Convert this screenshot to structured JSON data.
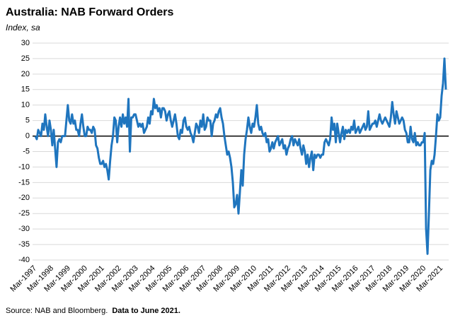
{
  "chart_data": {
    "type": "line",
    "title": "Australia: NAB Forward Orders",
    "subtitle": "Index, sa",
    "source": "Source: NAB and Bloomberg.",
    "note": "Data to June 2021.",
    "categories": [
      "Mar-1997",
      null,
      null,
      null,
      null,
      null,
      null,
      null,
      null,
      null,
      null,
      null,
      "Mar-1998",
      null,
      null,
      null,
      null,
      null,
      null,
      null,
      null,
      null,
      null,
      null,
      "Mar-1999",
      null,
      null,
      null,
      null,
      null,
      null,
      null,
      null,
      null,
      null,
      null,
      "Mar-2000",
      null,
      null,
      null,
      null,
      null,
      null,
      null,
      null,
      null,
      null,
      null,
      "Mar-2001",
      null,
      null,
      null,
      null,
      null,
      null,
      null,
      null,
      null,
      null,
      null,
      "Mar-2002",
      null,
      null,
      null,
      null,
      null,
      null,
      null,
      null,
      null,
      null,
      null,
      "Mar-2003",
      null,
      null,
      null,
      null,
      null,
      null,
      null,
      null,
      null,
      null,
      null,
      "Mar-2004",
      null,
      null,
      null,
      null,
      null,
      null,
      null,
      null,
      null,
      null,
      null,
      "Mar-2005",
      null,
      null,
      null,
      null,
      null,
      null,
      null,
      null,
      null,
      null,
      null,
      "Mar-2006",
      null,
      null,
      null,
      null,
      null,
      null,
      null,
      null,
      null,
      null,
      null,
      "Mar-2007",
      null,
      null,
      null,
      null,
      null,
      null,
      null,
      null,
      null,
      null,
      null,
      "Mar-2008",
      null,
      null,
      null,
      null,
      null,
      null,
      null,
      null,
      null,
      null,
      null,
      "Mar-2009",
      null,
      null,
      null,
      null,
      null,
      null,
      null,
      null,
      null,
      null,
      null,
      "Mar-2010",
      null,
      null,
      null,
      null,
      null,
      null,
      null,
      null,
      null,
      null,
      null,
      "Mar-2011",
      null,
      null,
      null,
      null,
      null,
      null,
      null,
      null,
      null,
      null,
      null,
      "Mar-2012",
      null,
      null,
      null,
      null,
      null,
      null,
      null,
      null,
      null,
      null,
      null,
      "Mar-2013",
      null,
      null,
      null,
      null,
      null,
      null,
      null,
      null,
      null,
      null,
      null,
      "Mar-2014",
      null,
      null,
      null,
      null,
      null,
      null,
      null,
      null,
      null,
      null,
      null,
      "Mar-2015",
      null,
      null,
      null,
      null,
      null,
      null,
      null,
      null,
      null,
      null,
      null,
      "Mar-2016",
      null,
      null,
      null,
      null,
      null,
      null,
      null,
      null,
      null,
      null,
      null,
      "Mar-2017",
      null,
      null,
      null,
      null,
      null,
      null,
      null,
      null,
      null,
      null,
      null,
      "Mar-2018",
      null,
      null,
      null,
      null,
      null,
      null,
      null,
      null,
      null,
      null,
      null,
      "Mar-2019",
      null,
      null,
      null,
      null,
      null,
      null,
      null,
      null,
      null,
      null,
      null,
      "Mar-2020",
      null,
      null,
      null,
      null,
      null,
      null,
      null,
      null,
      null,
      null,
      null,
      "Mar-2021",
      null,
      null,
      null
    ],
    "series": [
      {
        "color": "#1f75be",
        "values": [
          0,
          -1,
          2,
          1,
          0,
          4,
          2,
          7,
          3,
          0,
          5,
          2,
          -3,
          2,
          -4,
          -10,
          -2,
          -1,
          -2,
          0,
          0,
          0,
          5,
          10,
          5,
          4,
          7,
          4,
          5,
          2,
          2,
          0,
          4,
          7,
          3,
          0,
          0,
          3,
          2,
          2,
          1,
          3,
          2,
          -3,
          -4,
          -7,
          -9,
          -9,
          -8,
          -10,
          -9,
          -11,
          -14,
          -8,
          -3,
          0,
          6,
          5,
          -2,
          3,
          6,
          3,
          7,
          4,
          6,
          3,
          12,
          -5,
          6,
          6,
          7,
          7,
          5,
          3,
          4,
          3,
          4,
          1,
          2,
          3,
          6,
          4,
          8,
          7,
          12,
          9,
          10,
          8,
          9,
          6,
          9,
          9,
          8,
          5,
          7,
          8,
          5,
          3,
          5,
          7,
          4,
          0,
          -1,
          2,
          1,
          5,
          6,
          3,
          2,
          3,
          1,
          0,
          -2,
          1,
          4,
          3,
          1,
          5,
          3,
          7,
          2,
          3,
          6,
          5,
          5,
          0,
          4,
          5,
          7,
          6,
          8,
          9,
          6,
          4,
          0,
          -3,
          -6,
          -5,
          -7,
          -10,
          -15,
          -23,
          -22,
          -19,
          -25,
          -18,
          -11,
          -16,
          -6,
          -1,
          2,
          6,
          3,
          1,
          4,
          3,
          6,
          10,
          4,
          2,
          3,
          1,
          0,
          1,
          -2,
          -1,
          -5,
          -4,
          -2,
          -4,
          -2,
          -1,
          0,
          -3,
          -2,
          -1,
          -4,
          -3,
          -6,
          -4,
          -3,
          -1,
          0,
          -3,
          -1,
          -2,
          -3,
          -1,
          -4,
          -6,
          -3,
          -5,
          -9,
          -6,
          -10,
          -7,
          -5,
          -11,
          -6,
          -7,
          -6,
          -6,
          -7,
          -6,
          -6,
          -2,
          -1,
          -2,
          -3,
          -1,
          6,
          2,
          4,
          -2,
          4,
          1,
          -2,
          1,
          3,
          -1,
          2,
          1,
          2,
          1,
          3,
          2,
          5,
          1,
          2,
          3,
          1,
          2,
          3,
          4,
          2,
          3,
          8,
          2,
          3,
          4,
          4,
          5,
          3,
          5,
          7,
          5,
          4,
          5,
          6,
          5,
          4,
          3,
          6,
          11,
          7,
          4,
          8,
          6,
          4,
          5,
          6,
          5,
          2,
          1,
          -2,
          -2,
          3,
          -1,
          -2,
          1,
          -3,
          -2,
          -3,
          -3,
          -2,
          -2,
          1,
          -30,
          -38,
          -25,
          -11,
          -8,
          -9,
          -6,
          0,
          7,
          5,
          6,
          13,
          17,
          25,
          15
        ]
      }
    ],
    "ylim": [
      -40,
      30
    ],
    "yticks": [
      -40,
      -35,
      -30,
      -25,
      -20,
      -15,
      -10,
      -5,
      0,
      5,
      10,
      15,
      20,
      25,
      30
    ],
    "grid": true
  }
}
